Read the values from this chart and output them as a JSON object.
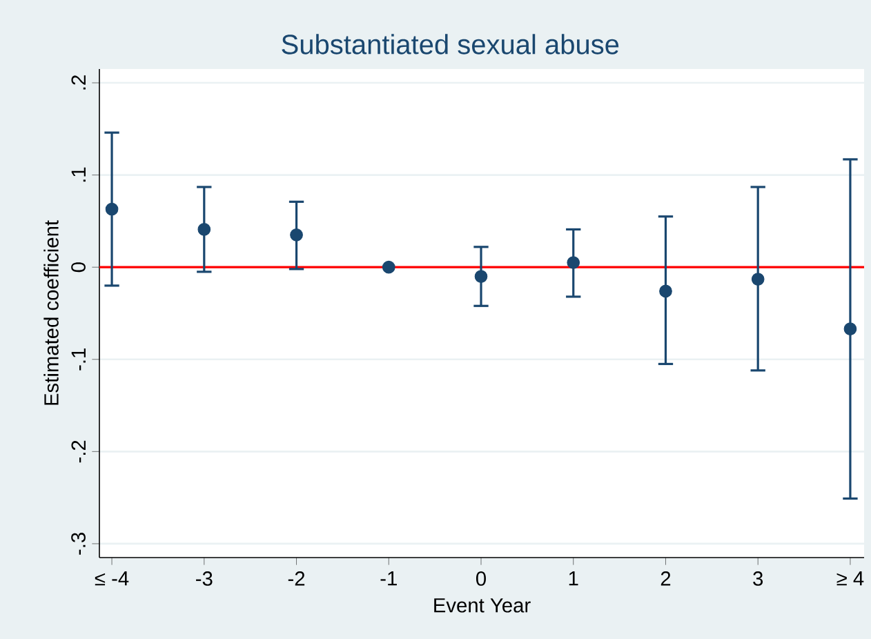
{
  "chart_data": {
    "type": "scatter",
    "title": "Substantiated sexual abuse",
    "xlabel": "Event Year",
    "ylabel": "Estimated coefficient",
    "categories": [
      "≤ -4",
      "-3",
      "-2",
      "-1",
      "0",
      "1",
      "2",
      "3",
      "≥ 4"
    ],
    "series": [
      {
        "color": "#1a476f",
        "values": [
          0.063,
          0.041,
          0.035,
          0,
          -0.01,
          0.005,
          -0.026,
          -0.013,
          -0.067
        ],
        "errors": [
          [
            -0.02,
            0.146
          ],
          [
            -0.005,
            0.087
          ],
          [
            -0.002,
            0.071
          ],
          null,
          [
            -0.042,
            0.022
          ],
          [
            -0.032,
            0.041
          ],
          [
            -0.105,
            0.055
          ],
          [
            -0.112,
            0.087
          ],
          [
            -0.251,
            0.117
          ]
        ]
      }
    ],
    "ylim": [
      -0.315,
      0.215
    ],
    "yticks": [
      {
        "value": -0.3,
        "label": "-.3"
      },
      {
        "value": -0.2,
        "label": "-.2"
      },
      {
        "value": -0.1,
        "label": "-.1"
      },
      0,
      {
        "value": 0.1,
        "label": ".1"
      },
      {
        "value": 0.2,
        "label": ".2"
      }
    ],
    "grid": "y",
    "marker": "circle",
    "ref_lines": [
      {
        "axis": "y",
        "value": 0,
        "color": "#ff0000"
      }
    ]
  }
}
